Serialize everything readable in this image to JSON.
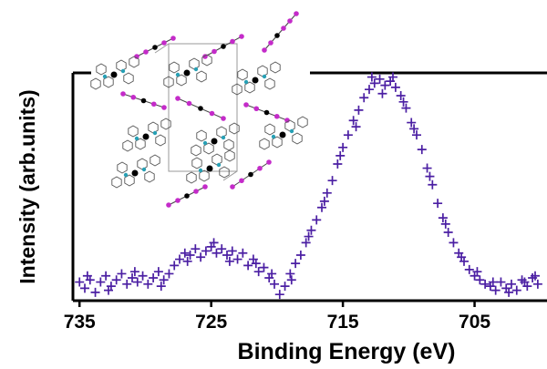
{
  "chart_data": {
    "type": "scatter",
    "title": "",
    "xlabel": "Binding Energy (eV)",
    "ylabel": "Intensity (arb.units)",
    "x_reversed": true,
    "xlim": [
      735.5,
      699.5
    ],
    "ylim": [
      0,
      1.1
    ],
    "xticks": [
      735,
      725,
      715,
      705
    ],
    "xtick_labels": [
      "735",
      "725",
      "715",
      "705"
    ],
    "yticks_shown": false,
    "grid": false,
    "marker": "plus",
    "series_color": "#4b1fa3",
    "series": [
      {
        "name": "",
        "points": [
          [
            735.0,
            0.09
          ],
          [
            734.6,
            0.06
          ],
          [
            734.2,
            0.1
          ],
          [
            733.8,
            0.04
          ],
          [
            733.4,
            0.09
          ],
          [
            733.0,
            0.12
          ],
          [
            732.6,
            0.07
          ],
          [
            732.2,
            0.1
          ],
          [
            731.8,
            0.13
          ],
          [
            731.4,
            0.08
          ],
          [
            731.0,
            0.11
          ],
          [
            730.6,
            0.09
          ],
          [
            730.2,
            0.12
          ],
          [
            729.8,
            0.08
          ],
          [
            729.4,
            0.11
          ],
          [
            729.0,
            0.14
          ],
          [
            728.6,
            0.1
          ],
          [
            728.2,
            0.13
          ],
          [
            727.8,
            0.17
          ],
          [
            727.4,
            0.2
          ],
          [
            727.0,
            0.23
          ],
          [
            726.6,
            0.22
          ],
          [
            726.2,
            0.25
          ],
          [
            725.8,
            0.21
          ],
          [
            725.4,
            0.24
          ],
          [
            725.0,
            0.26
          ],
          [
            724.6,
            0.23
          ],
          [
            724.2,
            0.25
          ],
          [
            723.8,
            0.22
          ],
          [
            723.4,
            0.24
          ],
          [
            723.0,
            0.2
          ],
          [
            722.6,
            0.23
          ],
          [
            722.2,
            0.17
          ],
          [
            721.8,
            0.2
          ],
          [
            721.4,
            0.14
          ],
          [
            721.0,
            0.16
          ],
          [
            720.6,
            0.11
          ],
          [
            720.2,
            0.08
          ],
          [
            719.8,
            0.03
          ],
          [
            719.4,
            0.07
          ],
          [
            719.0,
            0.13
          ],
          [
            718.6,
            0.18
          ],
          [
            718.2,
            0.22
          ],
          [
            717.8,
            0.28
          ],
          [
            717.4,
            0.34
          ],
          [
            717.0,
            0.39
          ],
          [
            716.6,
            0.45
          ],
          [
            716.2,
            0.52
          ],
          [
            715.8,
            0.58
          ],
          [
            715.4,
            0.66
          ],
          [
            715.0,
            0.74
          ],
          [
            714.6,
            0.8
          ],
          [
            714.2,
            0.87
          ],
          [
            713.8,
            0.92
          ],
          [
            713.4,
            0.98
          ],
          [
            713.0,
            1.02
          ],
          [
            712.6,
            1.05
          ],
          [
            712.2,
            1.07
          ],
          [
            711.8,
            1.04
          ],
          [
            711.4,
            1.06
          ],
          [
            711.0,
            1.03
          ],
          [
            710.6,
            0.99
          ],
          [
            710.2,
            0.93
          ],
          [
            709.8,
            0.86
          ],
          [
            709.4,
            0.8
          ],
          [
            709.0,
            0.73
          ],
          [
            708.6,
            0.64
          ],
          [
            708.2,
            0.56
          ],
          [
            707.8,
            0.47
          ],
          [
            707.4,
            0.4
          ],
          [
            707.0,
            0.33
          ],
          [
            706.6,
            0.28
          ],
          [
            706.2,
            0.23
          ],
          [
            705.8,
            0.19
          ],
          [
            705.4,
            0.15
          ],
          [
            705.0,
            0.12
          ],
          [
            704.6,
            0.1
          ],
          [
            704.2,
            0.08
          ],
          [
            703.8,
            0.07
          ],
          [
            703.4,
            0.05
          ],
          [
            703.0,
            0.09
          ],
          [
            702.6,
            0.06
          ],
          [
            702.2,
            0.08
          ],
          [
            701.8,
            0.05
          ],
          [
            701.4,
            0.1
          ],
          [
            701.0,
            0.07
          ],
          [
            700.6,
            0.11
          ],
          [
            700.2,
            0.08
          ],
          [
            734.4,
            0.12
          ],
          [
            732.8,
            0.05
          ],
          [
            730.8,
            0.14
          ],
          [
            728.8,
            0.07
          ],
          [
            726.8,
            0.19
          ],
          [
            724.8,
            0.28
          ],
          [
            723.6,
            0.19
          ],
          [
            721.6,
            0.18
          ],
          [
            720.4,
            0.13
          ],
          [
            718.9,
            0.1
          ],
          [
            717.6,
            0.31
          ],
          [
            716.4,
            0.48
          ],
          [
            715.2,
            0.7
          ],
          [
            714.0,
            0.84
          ],
          [
            712.8,
            1.08
          ],
          [
            712.0,
            1.0
          ],
          [
            711.2,
            1.08
          ],
          [
            710.4,
            0.96
          ],
          [
            709.6,
            0.83
          ],
          [
            708.4,
            0.6
          ],
          [
            707.2,
            0.37
          ],
          [
            706.0,
            0.21
          ],
          [
            704.8,
            0.14
          ],
          [
            703.6,
            0.09
          ],
          [
            702.4,
            0.04
          ],
          [
            701.2,
            0.09
          ],
          [
            700.4,
            0.12
          ]
        ]
      }
    ]
  }
}
